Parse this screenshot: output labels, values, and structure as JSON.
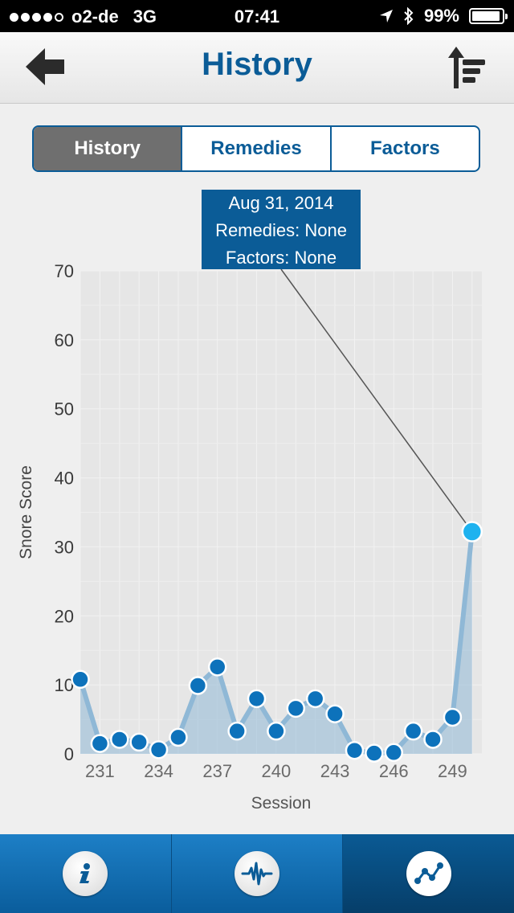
{
  "status": {
    "carrier": "o2-de",
    "network": "3G",
    "time": "07:41",
    "battery": "99%"
  },
  "header": {
    "title": "History",
    "back_icon": "back-arrow-icon",
    "sort_icon": "sort-icon"
  },
  "segments": [
    {
      "label": "History"
    },
    {
      "label": "Remedies"
    },
    {
      "label": "Factors"
    }
  ],
  "tooltip": {
    "date": "Aug 31, 2014",
    "remedies": "Remedies: None",
    "factors": "Factors: None"
  },
  "tabs": [
    {
      "icon": "info-icon"
    },
    {
      "icon": "waveform-icon"
    },
    {
      "icon": "chart-icon"
    }
  ],
  "colors": {
    "brand": "#0b5c97",
    "point": "#0d72bb",
    "highlight": "#1eb2ef",
    "area": "#8fb8d6"
  },
  "chart_data": {
    "type": "area",
    "xlabel": "Session",
    "ylabel": "Snore Score",
    "ylim": [
      0,
      70
    ],
    "yticks": [
      0,
      10,
      20,
      30,
      40,
      50,
      60,
      70
    ],
    "xticks": [
      231,
      234,
      237,
      240,
      243,
      246,
      249
    ],
    "xlim": [
      230,
      250.5
    ],
    "grid": true,
    "x": [
      230,
      231,
      232,
      233,
      234,
      235,
      236,
      237,
      238,
      239,
      240,
      241,
      242,
      243,
      244,
      245,
      246,
      247,
      248,
      249,
      250
    ],
    "y": [
      10.8,
      1.5,
      2.1,
      1.7,
      0.6,
      2.4,
      9.9,
      12.6,
      3.3,
      8.0,
      3.3,
      6.6,
      8.0,
      5.8,
      0.5,
      0.1,
      0.2,
      3.3,
      2.1,
      5.3,
      32.2
    ],
    "highlight_index": 20
  }
}
